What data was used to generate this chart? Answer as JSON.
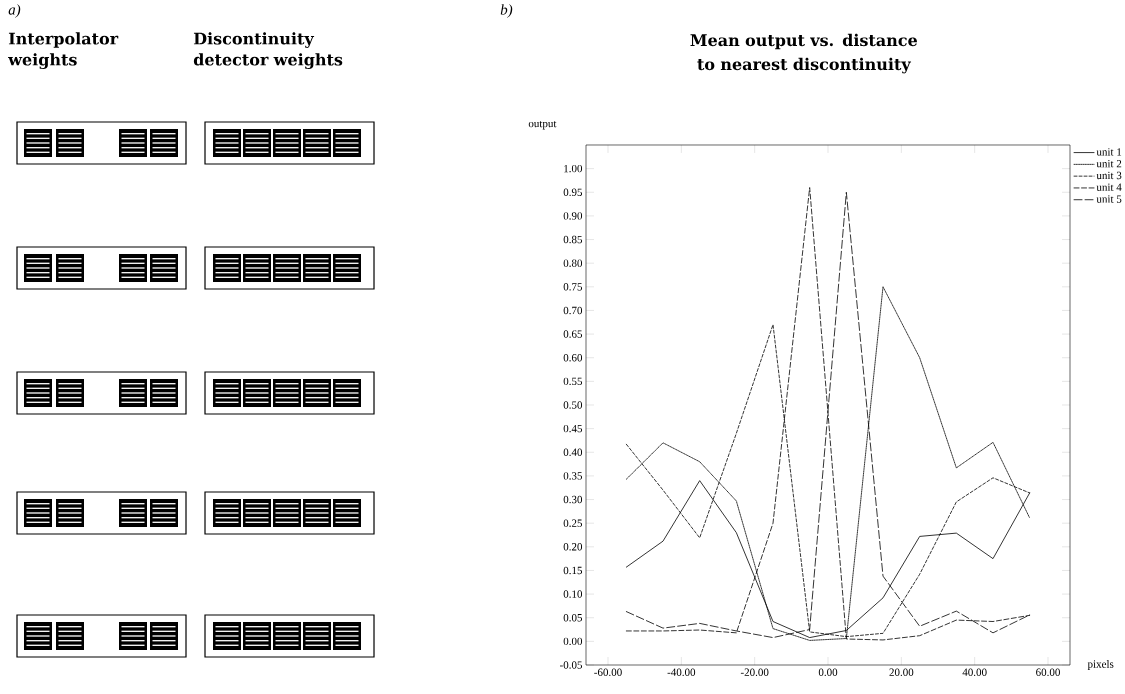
{
  "chart_data": [
    {
      "type": "other",
      "annotations": [
        "a)",
        "Interpolator weights",
        "Discontinuity detector weights"
      ]
    },
    {
      "type": "line",
      "title": "Mean output vs. distance to nearest discontinuity",
      "xlabel": "pixels",
      "ylabel": "output",
      "annotations": [
        "b)"
      ],
      "x": [
        -55,
        -45,
        -35,
        -25,
        -15,
        -5,
        5,
        15,
        25,
        35,
        45,
        55
      ],
      "series": [
        {
          "name": "unit 1",
          "color": "#000000",
          "line_style": "solid",
          "values": [
            0.157,
            0.212,
            0.34,
            0.23,
            0.042,
            0.008,
            0.023,
            0.092,
            0.222,
            0.229,
            0.175,
            0.314
          ]
        },
        {
          "name": "unit 2",
          "color": "#000000",
          "line_style": "dotted",
          "values": [
            0.343,
            0.42,
            0.38,
            0.297,
            0.027,
            0.002,
            0.006,
            0.75,
            0.6,
            0.367,
            0.421,
            0.261
          ]
        },
        {
          "name": "unit 3",
          "color": "#000000",
          "line_style": "dashed",
          "values": [
            0.417,
            0.32,
            0.219,
            0.44,
            0.67,
            0.02,
            0.01,
            0.017,
            0.142,
            0.295,
            0.346,
            0.314
          ]
        },
        {
          "name": "unit 4",
          "color": "#000000",
          "line_style": "dashed",
          "values": [
            0.022,
            0.022,
            0.024,
            0.018,
            0.25,
            0.96,
            0.005,
            0.003,
            0.012,
            0.045,
            0.042,
            0.055
          ]
        },
        {
          "name": "unit 5",
          "color": "#000000",
          "line_style": "dashed",
          "values": [
            0.063,
            0.028,
            0.038,
            0.022,
            0.008,
            0.025,
            0.95,
            0.138,
            0.032,
            0.064,
            0.018,
            0.056
          ]
        }
      ],
      "xlim": [
        -66,
        66
      ],
      "ylim": [
        -0.05,
        1.05
      ],
      "xticks": [
        {
          "value": -60,
          "label": "-60.00"
        },
        {
          "value": -40,
          "label": "-40.00"
        },
        {
          "value": -20,
          "label": "-20.00"
        },
        {
          "value": 0,
          "label": "0.00"
        },
        {
          "value": 20,
          "label": "20.00"
        },
        {
          "value": 40,
          "label": "40.00"
        },
        {
          "value": 60,
          "label": "60.00"
        }
      ],
      "yticks": [
        {
          "value": -0.05,
          "label": "-0.05"
        },
        {
          "value": 0,
          "label": "0.00"
        },
        {
          "value": 0.05,
          "label": "0.05"
        },
        {
          "value": 0.1,
          "label": "0.10"
        },
        {
          "value": 0.15,
          "label": "0.15"
        },
        {
          "value": 0.2,
          "label": "0.20"
        },
        {
          "value": 0.25,
          "label": "0.25"
        },
        {
          "value": 0.3,
          "label": "0.30"
        },
        {
          "value": 0.35,
          "label": "0.35"
        },
        {
          "value": 0.4,
          "label": "0.40"
        },
        {
          "value": 0.45,
          "label": "0.45"
        },
        {
          "value": 0.5,
          "label": "0.50"
        },
        {
          "value": 0.55,
          "label": "0.55"
        },
        {
          "value": 0.6,
          "label": "0.60"
        },
        {
          "value": 0.65,
          "label": "0.65"
        },
        {
          "value": 0.7,
          "label": "0.70"
        },
        {
          "value": 0.75,
          "label": "0.75"
        },
        {
          "value": 0.8,
          "label": "0.80"
        },
        {
          "value": 0.85,
          "label": "0.85"
        },
        {
          "value": 0.9,
          "label": "0.90"
        },
        {
          "value": 0.95,
          "label": "0.95"
        },
        {
          "value": 1,
          "label": "1.00"
        }
      ],
      "legend": "right",
      "grid": false
    }
  ]
}
